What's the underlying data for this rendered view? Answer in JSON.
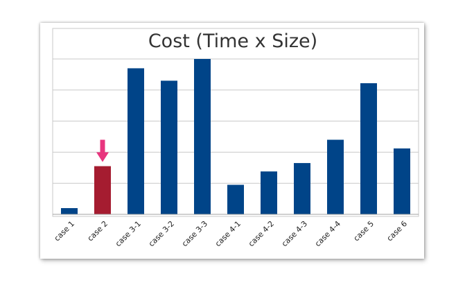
{
  "chart_data": {
    "type": "bar",
    "title": "Cost (Time x Size)",
    "xlabel": "",
    "ylabel": "",
    "categories": [
      "case 1",
      "case 2",
      "case 3-1",
      "case 3-2",
      "case 3-3",
      "case 4-1",
      "case 4-2",
      "case 4-3",
      "case 4-4",
      "case 5",
      "case 6"
    ],
    "values": [
      0.2,
      1.55,
      4.7,
      4.3,
      5.0,
      0.95,
      1.38,
      1.65,
      2.4,
      4.22,
      2.12
    ],
    "ylim": [
      0,
      5
    ],
    "grid": true,
    "highlight_index": 1,
    "highlight_marker": "arrow-down-icon",
    "colors": {
      "bar": "#004488",
      "highlight": "#A51C30",
      "arrow": "#E8357E",
      "grid": "#C8C8C8"
    }
  }
}
